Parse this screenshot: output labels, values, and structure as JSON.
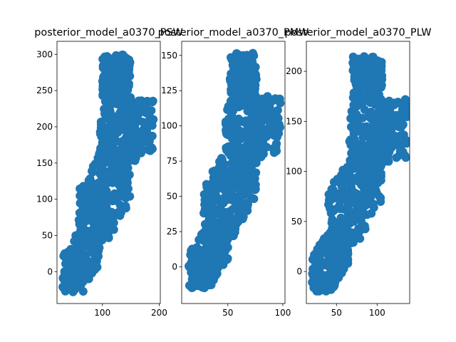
{
  "chart_data": [
    {
      "type": "scatter",
      "title": "posterior_model_a0370_PSW",
      "xlabel": "",
      "ylabel": "",
      "xlim": [
        20,
        202
      ],
      "ylim": [
        -44,
        318
      ],
      "xticks": [
        100,
        200
      ],
      "yticks": [
        0,
        50,
        100,
        150,
        200,
        250,
        300
      ],
      "color": "#1f77b4",
      "clusters": [
        {
          "x": [
            30,
            95
          ],
          "y": [
            -28,
            60
          ],
          "n": 260
        },
        {
          "x": [
            58,
            150
          ],
          "y": [
            40,
            170
          ],
          "n": 330
        },
        {
          "x": [
            95,
            160
          ],
          "y": [
            150,
            225
          ],
          "n": 150
        },
        {
          "x": [
            100,
            150
          ],
          "y": [
            230,
            300
          ],
          "n": 180
        },
        {
          "x": [
            140,
            190
          ],
          "y": [
            160,
            240
          ],
          "n": 100
        }
      ]
    },
    {
      "type": "scatter",
      "title": "posterior_model_a0370_PMW",
      "xlabel": "",
      "ylabel": "",
      "xlim": [
        8,
        102
      ],
      "ylim": [
        -26,
        160
      ],
      "xticks": [
        50,
        100
      ],
      "yticks": [
        0,
        25,
        50,
        75,
        100,
        125,
        150
      ],
      "color": "#1f77b4",
      "clusters": [
        {
          "x": [
            14,
            50
          ],
          "y": [
            -15,
            30
          ],
          "n": 260
        },
        {
          "x": [
            28,
            76
          ],
          "y": [
            20,
            86
          ],
          "n": 330
        },
        {
          "x": [
            48,
            82
          ],
          "y": [
            76,
            115
          ],
          "n": 150
        },
        {
          "x": [
            52,
            76
          ],
          "y": [
            115,
            152
          ],
          "n": 180
        },
        {
          "x": [
            72,
            98
          ],
          "y": [
            80,
            121
          ],
          "n": 100
        }
      ]
    },
    {
      "type": "scatter",
      "title": "posterior_model_a0370_PLW",
      "xlabel": "",
      "ylabel": "",
      "xlim": [
        13,
        140
      ],
      "ylim": [
        -32,
        230
      ],
      "xticks": [
        50,
        100
      ],
      "yticks": [
        0,
        50,
        100,
        150,
        200
      ],
      "color": "#1f77b4",
      "clusters": [
        {
          "x": [
            20,
            65
          ],
          "y": [
            -20,
            42
          ],
          "n": 260
        },
        {
          "x": [
            40,
            105
          ],
          "y": [
            28,
            122
          ],
          "n": 330
        },
        {
          "x": [
            66,
            115
          ],
          "y": [
            108,
            162
          ],
          "n": 150
        },
        {
          "x": [
            70,
            106
          ],
          "y": [
            163,
            215
          ],
          "n": 180
        },
        {
          "x": [
            100,
            137
          ],
          "y": [
            112,
            172
          ],
          "n": 100
        }
      ]
    }
  ]
}
